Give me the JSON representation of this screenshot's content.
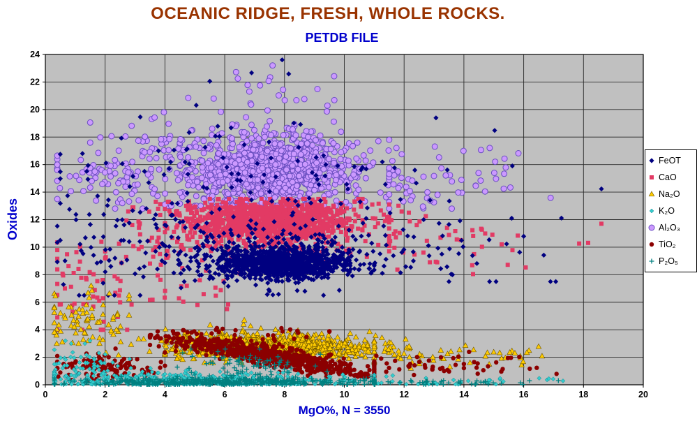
{
  "chart_data": {
    "type": "scatter",
    "title": "OCEANIC RIDGE, FRESH, WHOLE ROCKS.",
    "subtitle": "PETDB FILE",
    "xlabel": "MgO%,  N = 3550",
    "ylabel": "Oxides",
    "n_samples": 3550,
    "xlim": [
      0,
      20
    ],
    "ylim": [
      0,
      24
    ],
    "xticks": [
      0,
      2,
      4,
      6,
      8,
      10,
      12,
      14,
      16,
      18,
      20
    ],
    "yticks": [
      0,
      2,
      4,
      6,
      8,
      10,
      12,
      14,
      16,
      18,
      20,
      22,
      24
    ],
    "grid": true,
    "legend_position": "right",
    "colors": {
      "title": "#993300",
      "axis_text": "#0000cc",
      "plot_bg": "#c0c0c0",
      "grid": "#2a2a2a",
      "border": "#000000",
      "tick_text": "#000000",
      "legend_bg": "#ffffff",
      "legend_border": "#000000"
    },
    "draw_order": [
      "Al2O3",
      "CaO",
      "FeOT",
      "Na2O",
      "TiO2",
      "K2O",
      "P2O5"
    ],
    "series": [
      {
        "id": "FeOT",
        "label": "FeOT",
        "marker": "diamond",
        "color": "#000080",
        "stroke": "none",
        "stroke_width": 0,
        "size": 3.6,
        "clusters": [
          {
            "cx": 7.9,
            "cy": 8.8,
            "sx": 1.1,
            "sy": 0.5,
            "n": 900,
            "xmin": 4.5,
            "xmax": 11,
            "ymin": 7.2,
            "ymax": 10.3
          },
          {
            "cx": 7.5,
            "cy": 9.2,
            "sx": 1.9,
            "sy": 1.1,
            "n": 350,
            "xmin": 3,
            "xmax": 12.5,
            "ymin": 6.5,
            "ymax": 12.5
          },
          {
            "cx": 7,
            "cy": 14.5,
            "sx": 3.2,
            "sy": 2.2,
            "n": 130,
            "xmin": 0.5,
            "xmax": 17,
            "ymin": 10.5,
            "ymax": 21
          },
          {
            "cx": 2,
            "cy": 10,
            "sx": 1.2,
            "sy": 2.5,
            "n": 50,
            "xmin": 0.4,
            "xmax": 4,
            "ymin": 6.5,
            "ymax": 17
          },
          {
            "cx": 12.5,
            "cy": 9.5,
            "sx": 1.8,
            "sy": 1,
            "n": 40,
            "xmin": 10.5,
            "xmax": 16,
            "ymin": 7.5,
            "ymax": 12
          },
          {
            "cx": 7.3,
            "cy": 22.5,
            "sx": 1,
            "sy": 0.8,
            "n": 4,
            "xmin": 5.5,
            "xmax": 9,
            "ymin": 21,
            "ymax": 23.8
          },
          {
            "cx": 16,
            "cy": 11,
            "sx": 2,
            "sy": 3,
            "n": 12,
            "xmin": 13.5,
            "xmax": 18.6,
            "ymin": 7.5,
            "ymax": 19.5
          }
        ]
      },
      {
        "id": "CaO",
        "label": "CaO",
        "marker": "square",
        "color": "#e23a64",
        "stroke": "none",
        "stroke_width": 0,
        "size": 3,
        "clusters": [
          {
            "cx": 7.6,
            "cy": 11.9,
            "sx": 1.4,
            "sy": 0.75,
            "n": 1000,
            "xmin": 4,
            "xmax": 11.5,
            "ymin": 9.8,
            "ymax": 13.5
          },
          {
            "cx": 7,
            "cy": 11.2,
            "sx": 2.2,
            "sy": 1.2,
            "n": 250,
            "xmin": 2,
            "xmax": 13,
            "ymin": 8.5,
            "ymax": 13.3
          },
          {
            "cx": 1.5,
            "cy": 7,
            "sx": 1,
            "sy": 2,
            "n": 60,
            "xmin": 0.4,
            "xmax": 3.5,
            "ymin": 4,
            "ymax": 12.3
          },
          {
            "cx": 4.8,
            "cy": 7.3,
            "sx": 0.8,
            "sy": 1,
            "n": 25,
            "xmin": 3.5,
            "xmax": 6.5,
            "ymin": 5.5,
            "ymax": 9.5
          },
          {
            "cx": 13.5,
            "cy": 10.5,
            "sx": 2,
            "sy": 1,
            "n": 45,
            "xmin": 11.5,
            "xmax": 18.6,
            "ymin": 8,
            "ymax": 12.5
          }
        ]
      },
      {
        "id": "Na2O",
        "label": "Na₂O",
        "marker": "triangle",
        "color": "#ffcc00",
        "stroke": "#6b5200",
        "stroke_width": 0.6,
        "size": 4,
        "clusters": [
          {
            "cx": 7.6,
            "cy": 2.7,
            "sx": 1.5,
            "sy": 0.35,
            "n": 800,
            "xmin": 4,
            "xmax": 11.5,
            "ymin": 1.9,
            "ymax": 3.8
          },
          {
            "cx": 7,
            "cy": 3,
            "sx": 2.5,
            "sy": 0.7,
            "n": 200,
            "xmin": 1,
            "xmax": 14,
            "ymin": 1.6,
            "ymax": 4.7
          },
          {
            "cx": 1.2,
            "cy": 4.8,
            "sx": 0.8,
            "sy": 1,
            "n": 70,
            "xmin": 0.3,
            "xmax": 2.8,
            "ymin": 3,
            "ymax": 7.2
          },
          {
            "cx": 13,
            "cy": 2.2,
            "sx": 2.2,
            "sy": 0.5,
            "n": 60,
            "xmin": 11,
            "xmax": 18.6,
            "ymin": 1.2,
            "ymax": 3.2
          }
        ]
      },
      {
        "id": "K2O",
        "label": "K₂O",
        "marker": "diamond",
        "color": "#33cccc",
        "stroke": "#0e7d8a",
        "stroke_width": 0.5,
        "size": 3,
        "clusters": [
          {
            "cx": 5,
            "cy": 0.35,
            "sx": 2.8,
            "sy": 0.3,
            "n": 420,
            "xmin": 0.3,
            "xmax": 11,
            "ymin": 0.04,
            "ymax": 1.2
          },
          {
            "cx": 1.2,
            "cy": 1.5,
            "sx": 0.8,
            "sy": 0.8,
            "n": 70,
            "xmin": 0.3,
            "xmax": 3,
            "ymin": 0.3,
            "ymax": 3.2
          },
          {
            "cx": 13,
            "cy": 0.25,
            "sx": 2.5,
            "sy": 0.2,
            "n": 40,
            "xmin": 11,
            "xmax": 18.6,
            "ymin": 0.04,
            "ymax": 0.8
          }
        ]
      },
      {
        "id": "Al2O3",
        "label": "Al₂O₃",
        "marker": "circle",
        "color": "#cc99ff",
        "stroke": "#6a4fc0",
        "stroke_width": 1,
        "size": 4,
        "clusters": [
          {
            "cx": 7.6,
            "cy": 15.6,
            "sx": 1.3,
            "sy": 1.2,
            "n": 900,
            "xmin": 4.5,
            "xmax": 11,
            "ymin": 13,
            "ymax": 20.5
          },
          {
            "cx": 7,
            "cy": 16,
            "sx": 2.5,
            "sy": 1.8,
            "n": 280,
            "xmin": 1.5,
            "xmax": 13,
            "ymin": 13,
            "ymax": 21.5
          },
          {
            "cx": 2,
            "cy": 15.5,
            "sx": 1.2,
            "sy": 1.5,
            "n": 80,
            "xmin": 0.4,
            "xmax": 4.5,
            "ymin": 12.8,
            "ymax": 20.5
          },
          {
            "cx": 7,
            "cy": 21.7,
            "sx": 1.5,
            "sy": 0.8,
            "n": 18,
            "xmin": 3.5,
            "xmax": 10.5,
            "ymin": 20.3,
            "ymax": 23.2
          },
          {
            "cx": 13.5,
            "cy": 15,
            "sx": 1.8,
            "sy": 1.2,
            "n": 60,
            "xmin": 11.5,
            "xmax": 18.8,
            "ymin": 12.8,
            "ymax": 18.5
          }
        ]
      },
      {
        "id": "TiO2",
        "label": "TiO₂",
        "marker": "circle",
        "color": "#8b0000",
        "stroke": "none",
        "stroke_width": 0,
        "size": 3.2,
        "clusters": [
          {
            "cx": 7.5,
            "cy": 2.1,
            "sx": 1.6,
            "sy": 0.35,
            "slope": -0.38,
            "n": 800,
            "xmin": 3.5,
            "xmax": 11,
            "ymin": 0.6,
            "ymax": 4.2
          },
          {
            "cx": 2,
            "cy": 1.3,
            "sx": 1,
            "sy": 0.5,
            "n": 120,
            "xmin": 0.4,
            "xmax": 4,
            "ymin": 0.3,
            "ymax": 2.8
          },
          {
            "cx": 13,
            "cy": 1.4,
            "sx": 2,
            "sy": 0.4,
            "n": 60,
            "xmin": 11,
            "xmax": 18.6,
            "ymin": 0.6,
            "ymax": 2.6
          },
          {
            "cx": 6,
            "cy": 3.8,
            "sx": 1.5,
            "sy": 0.5,
            "n": 25,
            "xmin": 3.5,
            "xmax": 9.5,
            "ymin": 3.2,
            "ymax": 4.6
          }
        ]
      },
      {
        "id": "P2O5",
        "label": "P₂O₅",
        "marker": "plus",
        "color": "#008080",
        "stroke": "#008080",
        "stroke_width": 1.3,
        "size": 3.5,
        "clusters": [
          {
            "cx": 6,
            "cy": 0.2,
            "sx": 2.5,
            "sy": 0.15,
            "n": 450,
            "xmin": 0.3,
            "xmax": 11,
            "ymin": 0.03,
            "ymax": 0.6
          },
          {
            "cx": 6.8,
            "cy": 1.2,
            "sx": 1.2,
            "sy": 0.6,
            "n": 90,
            "xmin": 4,
            "xmax": 9.5,
            "ymin": 0.4,
            "ymax": 2.6
          },
          {
            "cx": 13,
            "cy": 0.15,
            "sx": 2,
            "sy": 0.1,
            "n": 50,
            "xmin": 11,
            "xmax": 18,
            "ymin": 0.03,
            "ymax": 0.4
          }
        ]
      }
    ]
  }
}
